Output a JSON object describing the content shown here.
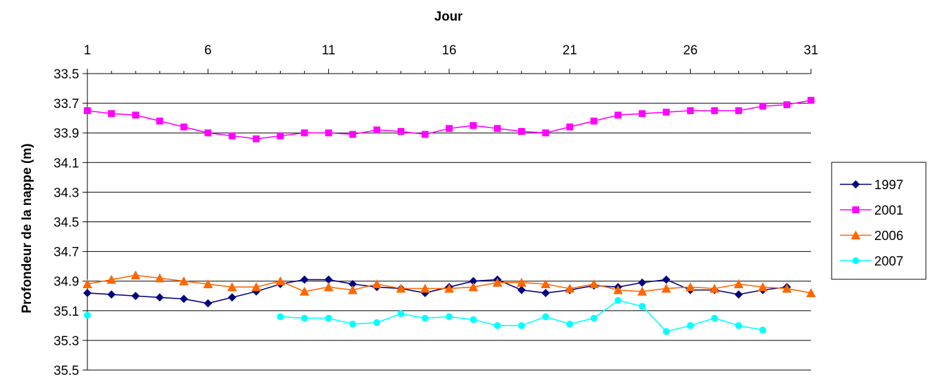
{
  "chart_data": {
    "type": "line",
    "title": "",
    "xlabel": "Jour",
    "ylabel": "Profondeur de la nappe (m)",
    "x_axis_position": "top",
    "y_inverted": true,
    "xlim": [
      1,
      31
    ],
    "ylim": [
      33.5,
      35.5
    ],
    "x_ticks": [
      "1",
      "6",
      "11",
      "16",
      "21",
      "26",
      "31"
    ],
    "y_ticks": [
      "33.5",
      "33.7",
      "33.9",
      "34.1",
      "34.3",
      "34.5",
      "34.7",
      "34.9",
      "35.1",
      "35.3",
      "35.5"
    ],
    "grid": "horizontal",
    "legend_position": "right",
    "series": [
      {
        "name": "1997",
        "color": "#000080",
        "marker": "diamond",
        "x": [
          1,
          2,
          3,
          4,
          5,
          6,
          7,
          8,
          9,
          10,
          11,
          12,
          13,
          14,
          15,
          16,
          17,
          18,
          19,
          20,
          21,
          22,
          23,
          24,
          25,
          26,
          27,
          28,
          29,
          30
        ],
        "values": [
          34.98,
          34.99,
          35.0,
          35.01,
          35.02,
          35.05,
          35.01,
          34.97,
          34.92,
          34.89,
          34.89,
          34.92,
          34.94,
          34.95,
          34.98,
          34.94,
          34.9,
          34.89,
          34.96,
          34.98,
          34.96,
          34.93,
          34.94,
          34.91,
          34.89,
          34.96,
          34.96,
          34.99,
          34.96,
          34.94
        ]
      },
      {
        "name": "2001",
        "color": "#FF00FF",
        "marker": "square",
        "x": [
          1,
          2,
          3,
          4,
          5,
          6,
          7,
          8,
          9,
          10,
          11,
          12,
          13,
          14,
          15,
          16,
          17,
          18,
          19,
          20,
          21,
          22,
          23,
          24,
          25,
          26,
          27,
          28,
          29,
          30,
          31
        ],
        "values": [
          33.75,
          33.77,
          33.78,
          33.82,
          33.86,
          33.9,
          33.92,
          33.94,
          33.92,
          33.9,
          33.9,
          33.91,
          33.88,
          33.89,
          33.91,
          33.87,
          33.85,
          33.87,
          33.89,
          33.9,
          33.86,
          33.82,
          33.78,
          33.77,
          33.76,
          33.75,
          33.75,
          33.75,
          33.72,
          33.71,
          33.68
        ]
      },
      {
        "name": "2006",
        "color": "#FF6600",
        "marker": "triangle",
        "x": [
          1,
          2,
          3,
          4,
          5,
          6,
          7,
          8,
          9,
          10,
          11,
          12,
          13,
          14,
          15,
          16,
          17,
          18,
          19,
          20,
          21,
          22,
          23,
          24,
          25,
          26,
          27,
          28,
          29,
          30,
          31
        ],
        "values": [
          34.92,
          34.89,
          34.86,
          34.88,
          34.9,
          34.92,
          34.94,
          34.94,
          34.9,
          34.97,
          34.94,
          34.96,
          34.92,
          34.95,
          34.95,
          34.95,
          34.94,
          34.91,
          34.91,
          34.92,
          34.95,
          34.92,
          34.96,
          34.97,
          34.95,
          34.94,
          34.95,
          34.92,
          34.94,
          34.95,
          34.98
        ]
      },
      {
        "name": "2007",
        "color": "#00FFFF",
        "marker": "circle",
        "x": [
          1,
          9,
          10,
          11,
          12,
          13,
          14,
          15,
          16,
          17,
          18,
          19,
          20,
          21,
          22,
          23,
          24,
          25,
          26,
          27,
          28,
          29
        ],
        "values": [
          35.13,
          35.14,
          35.15,
          35.15,
          35.19,
          35.18,
          35.12,
          35.15,
          35.14,
          35.16,
          35.2,
          35.2,
          35.14,
          35.19,
          35.15,
          35.03,
          35.07,
          35.24,
          35.2,
          35.15,
          35.2,
          35.23
        ]
      }
    ]
  }
}
